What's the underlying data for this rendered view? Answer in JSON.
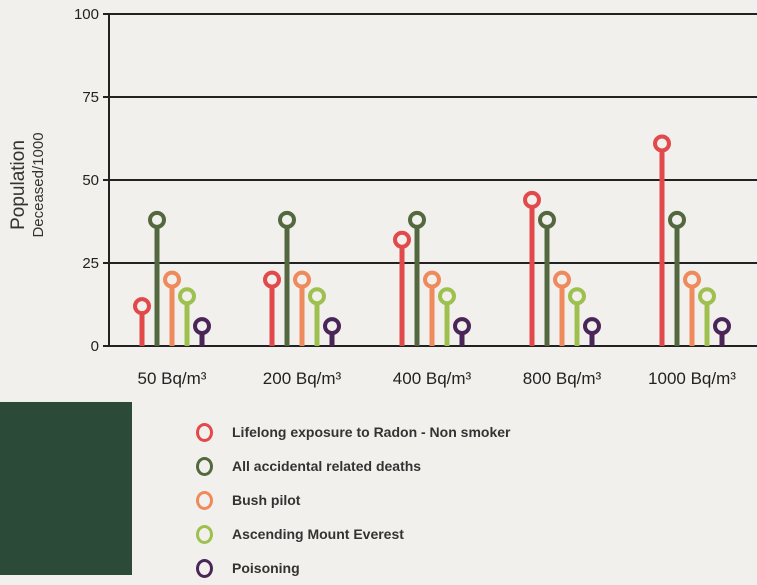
{
  "chart_data": {
    "type": "bar",
    "ylabel": "Population",
    "ylabel_sub": "Deceased/1000",
    "ylim": [
      0,
      100
    ],
    "yticks": [
      0,
      25,
      50,
      75,
      100
    ],
    "grid": true,
    "legend_placement": "bottom",
    "categories": [
      "50 Bq/m³",
      "200 Bq/m³",
      "400 Bq/m³",
      "800 Bq/m³",
      "1000 Bq/m³"
    ],
    "series": [
      {
        "name": "Lifelong exposure to Radon  - Non smoker",
        "color": "#e2494a",
        "values": [
          12,
          20,
          32,
          44,
          61
        ]
      },
      {
        "name": "All accidental related deaths",
        "color": "#54683f",
        "values": [
          38,
          38,
          38,
          38,
          38
        ]
      },
      {
        "name": "Bush pilot",
        "color": "#ee8a5c",
        "values": [
          20,
          20,
          20,
          20,
          20
        ]
      },
      {
        "name": "Ascending Mount Everest",
        "color": "#9ec04f",
        "values": [
          15,
          15,
          15,
          15,
          15
        ]
      },
      {
        "name": "Poisoning",
        "color": "#4a2658",
        "values": [
          6,
          6,
          6,
          6,
          6
        ]
      }
    ]
  }
}
